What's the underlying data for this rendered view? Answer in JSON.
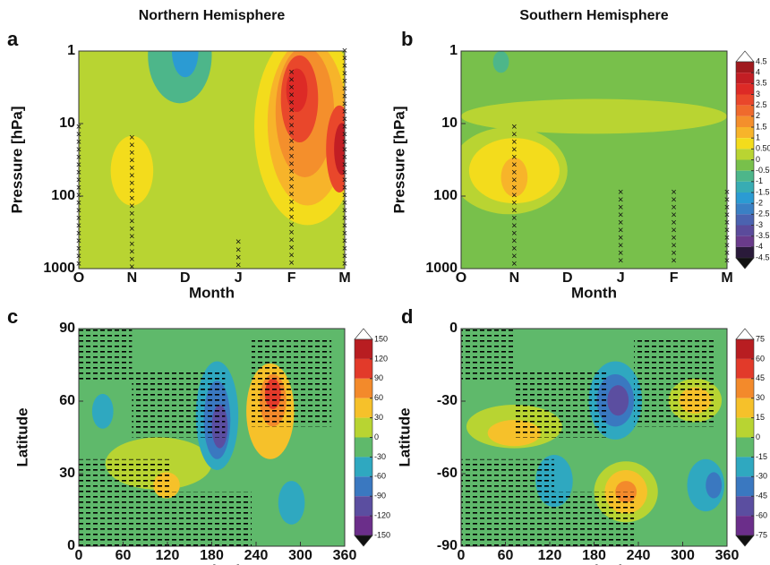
{
  "chart_data": [
    {
      "type": "contour",
      "panel_label": "a",
      "title": "Northern Hemisphere",
      "xlabel": "Month",
      "ylabel": "Pressure [hPa]",
      "categories": [
        "O",
        "N",
        "D",
        "J",
        "F",
        "M"
      ],
      "ylim": [
        1000,
        1
      ],
      "yticks": [
        1,
        10,
        100,
        1000
      ],
      "ylog": true
    },
    {
      "type": "contour",
      "panel_label": "b",
      "title": "Southern Hemisphere",
      "xlabel": "Month",
      "ylabel": "Pressure [hPa]",
      "categories": [
        "O",
        "N",
        "D",
        "J",
        "F",
        "M"
      ],
      "ylim": [
        1000,
        1
      ],
      "yticks": [
        1,
        10,
        100,
        1000
      ],
      "ylog": true,
      "colorbar": {
        "ticks": [
          4.5,
          4,
          3.5,
          3,
          2.5,
          2,
          1.5,
          1,
          {
            "value": 0.5,
            "label": "0.50"
          },
          0,
          {
            "value": -0.5,
            "label": "-0.50"
          },
          -1,
          -1.5,
          -2,
          -2.5,
          -3,
          -3.5,
          -4,
          -4.5
        ],
        "colors": [
          "#ffffff",
          "#a01a1e",
          "#c21e24",
          "#dd2a26",
          "#e9472b",
          "#ef6a2d",
          "#f48f2c",
          "#f7b42a",
          "#f3dc1c",
          "#b9d432",
          "#78c04b",
          "#4db68a",
          "#38acb3",
          "#2b9bd3",
          "#3a80c4",
          "#4b63b0",
          "#5b4b9b",
          "#6a3b8b",
          "#2a1a3a",
          "#111111"
        ]
      }
    },
    {
      "type": "contour",
      "panel_label": "c",
      "xlabel": "Longitude",
      "ylabel": "Latitude",
      "xlim": [
        0,
        360
      ],
      "xticks": [
        0,
        60,
        120,
        180,
        240,
        300,
        360
      ],
      "ylim": [
        0,
        90
      ],
      "yticks": [
        0,
        30,
        60,
        90
      ],
      "colorbar": {
        "ticks": [
          150,
          120,
          90,
          60,
          30,
          0,
          -30,
          -60,
          -90,
          -120,
          -150
        ],
        "colors": [
          "#ffffff",
          "#b81d21",
          "#e23a2a",
          "#f38a2b",
          "#f6c12a",
          "#b8d432",
          "#5fb96b",
          "#2fa8c0",
          "#3a78c0",
          "#5b4ea0",
          "#6b2e8a",
          "#111111"
        ]
      }
    },
    {
      "type": "contour",
      "panel_label": "d",
      "xlabel": "Longitude",
      "ylabel": "Latitude",
      "xlim": [
        0,
        360
      ],
      "xticks": [
        0,
        60,
        120,
        180,
        240,
        300,
        360
      ],
      "ylim": [
        -90,
        0
      ],
      "yticks": [
        -90,
        -60,
        -30,
        0
      ],
      "colorbar": {
        "ticks": [
          75,
          60,
          45,
          30,
          15,
          0,
          -15,
          -30,
          -45,
          -60,
          -75
        ],
        "colors": [
          "#ffffff",
          "#b81d21",
          "#e23a2a",
          "#f38a2b",
          "#f6c12a",
          "#b8d432",
          "#5fb96b",
          "#2fa8c0",
          "#3a78c0",
          "#5b4ea0",
          "#6b2e8a",
          "#111111"
        ]
      }
    }
  ]
}
